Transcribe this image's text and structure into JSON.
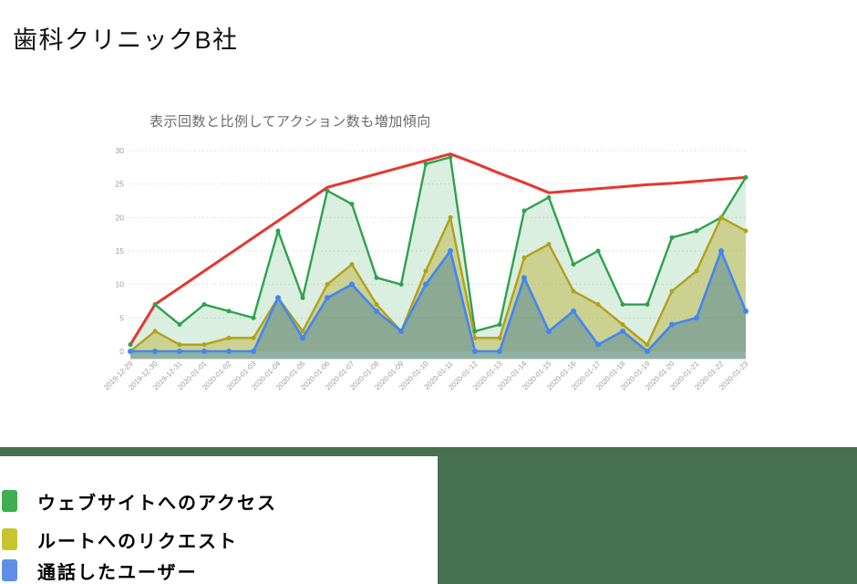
{
  "page": {
    "title": "歯科クリニックB社"
  },
  "chart": {
    "subtitle": "表示回数と比例してアクション数も増加傾向",
    "baseline_band_color": "#8fb2a5",
    "grid_color": "#d7d7d7",
    "tick_color": "#9a9a9a"
  },
  "chart_data": {
    "type": "area",
    "title": "表示回数と比例してアクション数も増加傾向",
    "xlabel": "",
    "ylabel": "",
    "ylim": [
      0,
      30
    ],
    "y_ticks": [
      0,
      5,
      10,
      15,
      20,
      25,
      30
    ],
    "grid": "dotted-horizontal",
    "legend_position": "bottom-left-panel",
    "x": [
      "2019-12-29",
      "2019-12-30",
      "2019-12-31",
      "2020-01-01",
      "2020-01-02",
      "2020-01-03",
      "2020-01-04",
      "2020-01-05",
      "2020-01-06",
      "2020-01-07",
      "2020-01-08",
      "2020-01-09",
      "2020-01-10",
      "2020-01-11",
      "2020-01-12",
      "2020-01-13",
      "2020-01-14",
      "2020-01-15",
      "2020-01-16",
      "2020-01-17",
      "2020-01-18",
      "2020-01-19",
      "2020-01-20",
      "2020-01-21",
      "2020-01-22",
      "2020-01-23"
    ],
    "series": [
      {
        "name": "ウェブサイトへのアクセス",
        "color": "#2fa14e",
        "fill": "rgba(52,168,83,0.18)",
        "in_legend": true,
        "markers": true,
        "values": [
          1,
          7,
          4,
          7,
          6,
          5,
          18,
          8,
          24,
          22,
          11,
          10,
          28,
          29,
          3,
          4,
          21,
          23,
          13,
          15,
          7,
          7,
          17,
          18,
          20,
          26
        ]
      },
      {
        "name": "ルートへのリクエスト",
        "color": "#b2a019",
        "fill": "rgba(180,165,25,0.40)",
        "in_legend": true,
        "markers": true,
        "values": [
          0,
          3,
          1,
          1,
          2,
          2,
          8,
          3,
          10,
          13,
          7,
          3,
          12,
          20,
          2,
          2,
          14,
          16,
          9,
          7,
          4,
          1,
          9,
          12,
          20,
          18
        ]
      },
      {
        "name": "通話したユーザー",
        "color": "#4285f4",
        "fill": "rgba(75,130,150,0.50)",
        "in_legend": true,
        "markers": true,
        "values": [
          0,
          0,
          0,
          0,
          0,
          0,
          8,
          2,
          8,
          10,
          6,
          3,
          10,
          15,
          0,
          0,
          11,
          3,
          6,
          1,
          3,
          0,
          4,
          5,
          15,
          6
        ]
      },
      {
        "name": "",
        "role": "trend-line",
        "color": "#e53730",
        "fill": "none",
        "in_legend": false,
        "markers": false,
        "values": [
          1,
          7,
          9.5,
          12,
          14.5,
          17,
          19.5,
          22,
          24.5,
          25.5,
          26.5,
          27.5,
          28.5,
          29.5,
          28.1,
          26.6,
          25.2,
          23.7,
          24,
          24.3,
          24.6,
          24.9,
          25.1,
          25.4,
          25.7,
          26
        ]
      }
    ]
  },
  "legend": {
    "band_color": "#47714e",
    "panel_bg": "#ffffff",
    "items": [
      {
        "label": "ウェブサイトへのアクセス",
        "color": "#3fae4e"
      },
      {
        "label": "ルートへのリクエスト",
        "color": "#c6c52e"
      },
      {
        "label": "通話したユーザー",
        "color": "#5f8ee8"
      }
    ]
  }
}
